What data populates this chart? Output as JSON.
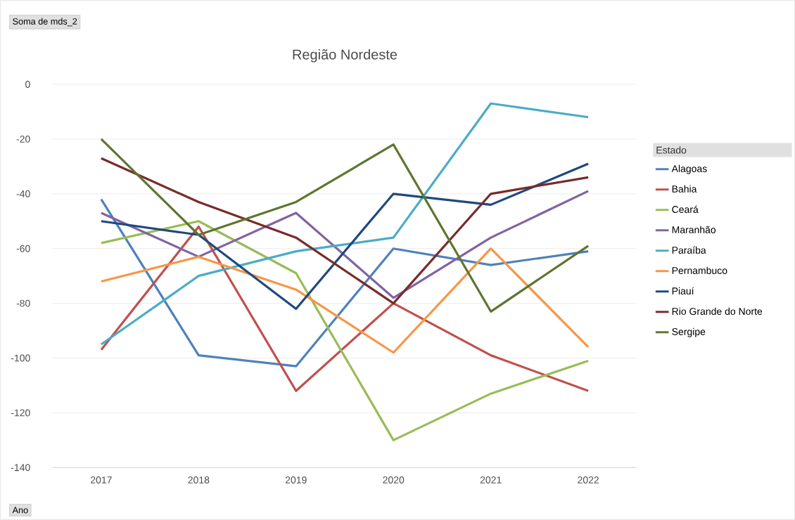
{
  "chart_data": {
    "type": "line",
    "title": "Região Nordeste",
    "xlabel": "Ano",
    "legend_title": "Estado",
    "annotations": [
      "Soma de mds_2"
    ],
    "categories": [
      "2017",
      "2018",
      "2019",
      "2020",
      "2021",
      "2022"
    ],
    "series": [
      {
        "name": "Alagoas",
        "color": "#4f81bd",
        "values": [
          -42,
          -99,
          -103,
          -60,
          -66,
          -61
        ]
      },
      {
        "name": "Bahia",
        "color": "#c0504d",
        "values": [
          -97,
          -52,
          -112,
          -80,
          -99,
          -112
        ]
      },
      {
        "name": "Ceará",
        "color": "#9bbb59",
        "values": [
          -58,
          -50,
          -69,
          -130,
          -113,
          -101
        ]
      },
      {
        "name": "Maranhão",
        "color": "#8064a2",
        "values": [
          -47,
          -63,
          -47,
          -78,
          -56,
          -39
        ]
      },
      {
        "name": "Paraíba",
        "color": "#4bacc6",
        "values": [
          -95,
          -70,
          -61,
          -56,
          -7,
          -12
        ]
      },
      {
        "name": "Pernambuco",
        "color": "#f79646",
        "values": [
          -72,
          -63,
          -75,
          -98,
          -60,
          -96
        ]
      },
      {
        "name": "Piauí",
        "color": "#1f497d",
        "values": [
          -50,
          -55,
          -82,
          -40,
          -44,
          -29
        ]
      },
      {
        "name": "Rio Grande do Norte",
        "color": "#772c2a",
        "values": [
          -27,
          -43,
          -56,
          -80,
          -40,
          -34
        ]
      },
      {
        "name": "Sergipe",
        "color": "#5f7530",
        "values": [
          -20,
          -55,
          -43,
          -22,
          -83,
          -59
        ]
      }
    ],
    "ylim": [
      -140,
      0
    ],
    "yticks": [
      -140,
      -120,
      -100,
      -80,
      -60,
      -40,
      -20,
      0
    ],
    "grid": "y",
    "legend": "right",
    "marker": "none",
    "line_style": "solid"
  }
}
